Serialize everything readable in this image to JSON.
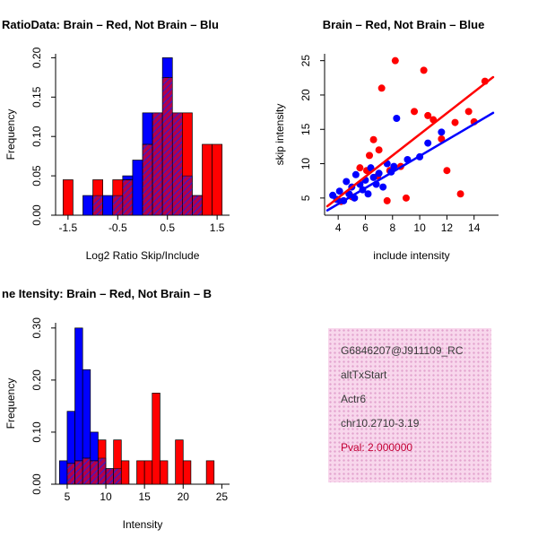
{
  "colors": {
    "red": "#FF0000",
    "blue": "#0000FF",
    "axis": "#000000",
    "pval_text": "#C40034",
    "info_bg": "#F8D7EC",
    "info_dot": "#E2A3CE",
    "info_text": "#3A3A3A"
  },
  "chart_data": [
    {
      "type": "bar",
      "subtype": "overlaid-histogram",
      "title": "RatioData: Brain – Red, Not Brain – Blu",
      "xlabel": "Log2 Ratio Skip/Include",
      "ylabel": "Frequency",
      "xlim": [
        -1.75,
        1.75
      ],
      "ylim": [
        0,
        0.205
      ],
      "xticks": [
        -1.5,
        -0.5,
        0.5,
        1.5
      ],
      "xtick_labels": [
        "-1.5",
        "-0.5",
        "0.5",
        "1.5"
      ],
      "yticks": [
        0,
        0.05,
        0.1,
        0.15,
        0.2
      ],
      "ytick_labels": [
        "0.00",
        "0.05",
        "0.10",
        "0.15",
        "0.20"
      ],
      "bin_start": -1.6,
      "bin_width": 0.2,
      "series": [
        {
          "name": "Brain",
          "color": "red",
          "values": [
            0.045,
            0,
            0,
            0.045,
            0,
            0.045,
            0.045,
            0,
            0.09,
            0.13,
            0.175,
            0.13,
            0.13,
            0.025,
            0.09,
            0.09
          ]
        },
        {
          "name": "Not Brain",
          "color": "blue",
          "values": [
            0,
            0,
            0.025,
            0.025,
            0.025,
            0.025,
            0.05,
            0.07,
            0.13,
            0.13,
            0.2,
            0.13,
            0.05,
            0.025,
            0,
            0
          ]
        }
      ]
    },
    {
      "type": "scatter",
      "title": "Brain – Red, Not Brain – Blue",
      "xlabel": "include intensity",
      "ylabel": "skip intensity",
      "xlim": [
        3,
        15.8
      ],
      "ylim": [
        2.5,
        26
      ],
      "xticks": [
        4,
        6,
        8,
        10,
        12,
        14
      ],
      "xtick_labels": [
        "4",
        "6",
        "8",
        "10",
        "12",
        "14"
      ],
      "yticks": [
        5,
        10,
        15,
        20,
        25
      ],
      "ytick_labels": [
        "5",
        "10",
        "15",
        "20",
        "25"
      ],
      "series": [
        {
          "name": "Brain",
          "color": "red",
          "points": [
            [
              4.2,
              4.5
            ],
            [
              5.0,
              5.2
            ],
            [
              5.6,
              9.4
            ],
            [
              6.1,
              9.0
            ],
            [
              6.3,
              11.2
            ],
            [
              6.6,
              13.5
            ],
            [
              6.9,
              8.2
            ],
            [
              7.0,
              12.0
            ],
            [
              7.2,
              21.0
            ],
            [
              7.6,
              4.6
            ],
            [
              7.8,
              9.0
            ],
            [
              8.2,
              25.0
            ],
            [
              8.6,
              9.6
            ],
            [
              9.0,
              5.0
            ],
            [
              9.6,
              17.6
            ],
            [
              10.3,
              23.6
            ],
            [
              10.6,
              17.0
            ],
            [
              11.0,
              16.4
            ],
            [
              11.6,
              13.6
            ],
            [
              12.0,
              9.0
            ],
            [
              12.6,
              16.0
            ],
            [
              13.0,
              5.6
            ],
            [
              13.6,
              17.6
            ],
            [
              14.0,
              16.1
            ],
            [
              14.8,
              22.0
            ]
          ]
        },
        {
          "name": "Not Brain",
          "color": "blue",
          "points": [
            [
              3.6,
              5.4
            ],
            [
              3.9,
              4.8
            ],
            [
              4.1,
              6.0
            ],
            [
              4.4,
              4.6
            ],
            [
              4.6,
              7.4
            ],
            [
              4.8,
              5.6
            ],
            [
              5.0,
              6.6
            ],
            [
              5.2,
              5.0
            ],
            [
              5.3,
              8.4
            ],
            [
              5.6,
              7.0
            ],
            [
              5.8,
              6.2
            ],
            [
              6.0,
              7.6
            ],
            [
              6.2,
              5.6
            ],
            [
              6.4,
              9.4
            ],
            [
              6.6,
              8.0
            ],
            [
              6.8,
              7.0
            ],
            [
              7.0,
              8.6
            ],
            [
              7.3,
              6.6
            ],
            [
              7.6,
              10.0
            ],
            [
              7.9,
              8.8
            ],
            [
              8.1,
              9.6
            ],
            [
              8.3,
              16.6
            ],
            [
              9.1,
              10.6
            ],
            [
              10.0,
              11.0
            ],
            [
              10.6,
              13.0
            ],
            [
              11.6,
              14.6
            ]
          ]
        }
      ],
      "fit_lines": [
        {
          "color": "red",
          "x": [
            3.2,
            15.4
          ],
          "y": [
            3.8,
            22.6
          ]
        },
        {
          "color": "blue",
          "x": [
            3.2,
            15.4
          ],
          "y": [
            3.2,
            17.4
          ]
        }
      ]
    },
    {
      "type": "bar",
      "subtype": "overlaid-histogram",
      "title": "ne Itensity: Brain – Red, Not Brain – B",
      "xlabel": "Intensity",
      "ylabel": "Frequency",
      "xlim": [
        3.5,
        26
      ],
      "ylim": [
        0,
        0.31
      ],
      "xticks": [
        5,
        10,
        15,
        20,
        25
      ],
      "xtick_labels": [
        "5",
        "10",
        "15",
        "20",
        "25"
      ],
      "yticks": [
        0,
        0.1,
        0.2,
        0.3
      ],
      "ytick_labels": [
        "0.00",
        "0.10",
        "0.20",
        "0.30"
      ],
      "bin_start": 4,
      "bin_width": 1,
      "series": [
        {
          "name": "Brain",
          "color": "red",
          "values": [
            0,
            0.04,
            0.045,
            0.05,
            0.045,
            0.085,
            0.03,
            0.085,
            0.045,
            0,
            0.045,
            0.045,
            0.175,
            0.045,
            0,
            0.085,
            0.045,
            0,
            0,
            0.045,
            0
          ]
        },
        {
          "name": "Not Brain",
          "color": "blue",
          "values": [
            0.045,
            0.14,
            0.3,
            0.22,
            0.1,
            0.05,
            0.03,
            0.03,
            0,
            0,
            0,
            0,
            0,
            0,
            0,
            0,
            0,
            0,
            0,
            0,
            0
          ]
        }
      ]
    }
  ],
  "info_box": {
    "lines": [
      "G6846207@J911109_RC",
      "altTxStart",
      "Actr6",
      "chr10.2710-3.19"
    ],
    "pval": "Pval: 2.000000"
  }
}
